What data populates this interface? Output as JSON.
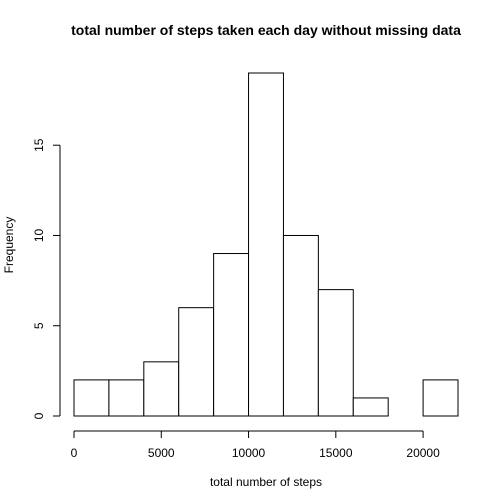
{
  "chart_data": {
    "type": "bar",
    "title": "total number of steps taken each day without missing data",
    "xlabel": "total number of steps",
    "ylabel": "Frequency",
    "bin_edges": [
      0,
      2000,
      4000,
      6000,
      8000,
      10000,
      12000,
      14000,
      16000,
      18000,
      20000,
      22000
    ],
    "values": [
      2,
      2,
      3,
      6,
      9,
      19,
      10,
      7,
      1,
      0,
      2
    ],
    "xlim": [
      0,
      22000
    ],
    "ylim": [
      0,
      19
    ],
    "x_ticks": [
      0,
      5000,
      10000,
      15000,
      20000
    ],
    "y_ticks": [
      0,
      5,
      10,
      15
    ],
    "grid": false,
    "colors": {
      "bar_fill": "#ffffff",
      "bar_stroke": "#000000"
    }
  }
}
